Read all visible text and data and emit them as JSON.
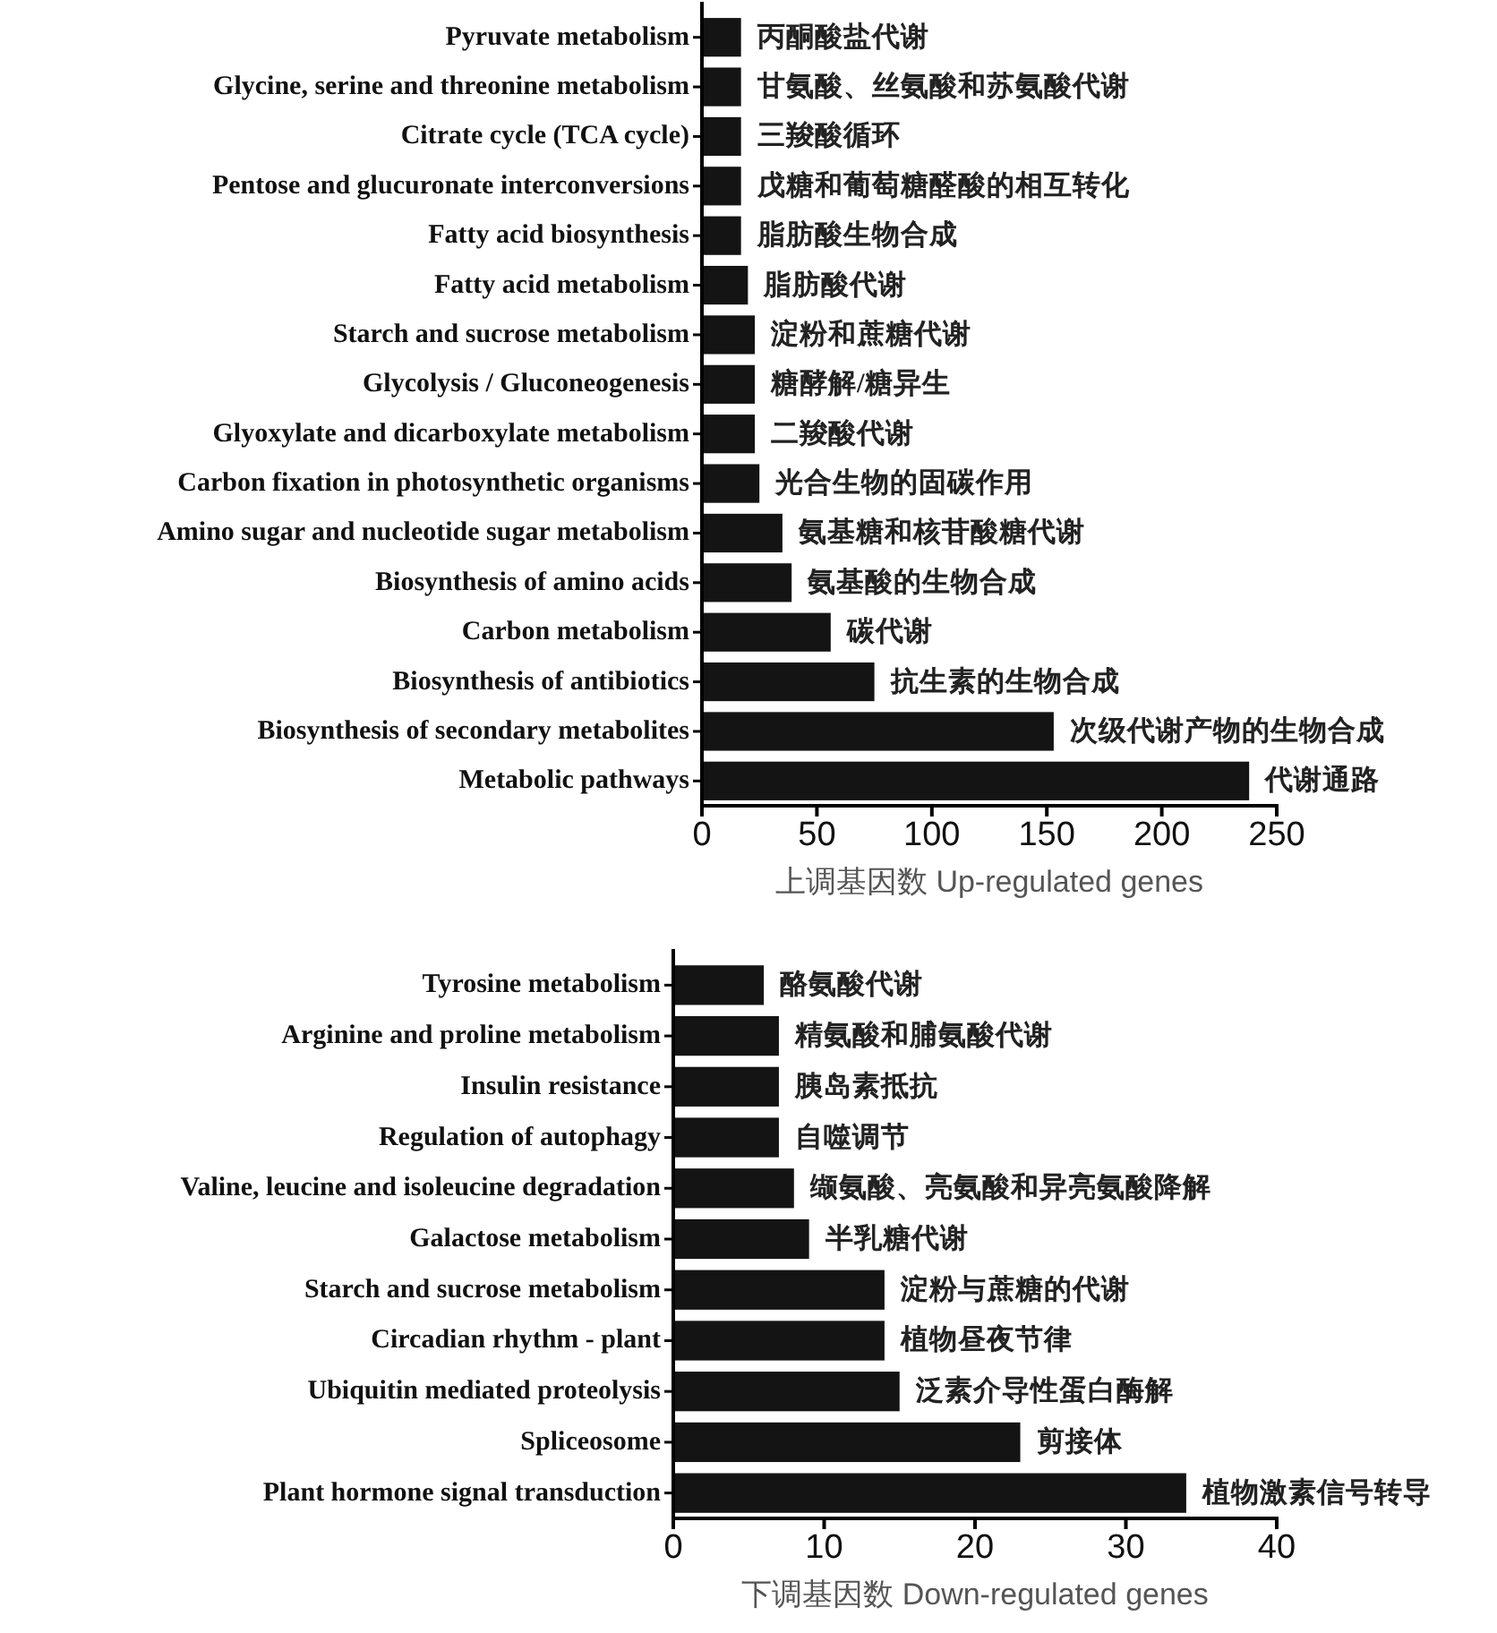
{
  "chart_data": [
    {
      "type": "bar",
      "orientation": "horizontal",
      "color": "#141414",
      "categories": [
        "Pyruvate metabolism",
        "Glycine, serine and threonine metabolism",
        "Citrate cycle (TCA cycle)",
        "Pentose and glucuronate interconversions",
        "Fatty acid biosynthesis",
        "Fatty acid metabolism",
        "Starch and sucrose metabolism",
        "Glycolysis / Gluconeogenesis",
        "Glyoxylate and dicarboxylate metabolism",
        "Carbon fixation in photosynthetic organisms",
        "Amino sugar and nucleotide sugar metabolism",
        "Biosynthesis of amino acids",
        "Carbon metabolism",
        "Biosynthesis of antibiotics",
        "Biosynthesis of secondary metabolites",
        "Metabolic pathways"
      ],
      "values": [
        17,
        17,
        17,
        17,
        17,
        20,
        23,
        23,
        23,
        25,
        35,
        39,
        56,
        75,
        153,
        238
      ],
      "xlim": [
        0,
        250
      ],
      "xticks": [
        0,
        50,
        100,
        150,
        200,
        250
      ],
      "xlabel": "上调基因数  Up-regulated genes",
      "annotations": [
        {
          "text": "丙酮酸盐代谢",
          "x": 17,
          "y": "Pyruvate metabolism"
        },
        {
          "text": "甘氨酸、丝氨酸和苏氨酸代谢",
          "x": 17,
          "y": "Glycine, serine and threonine metabolism"
        },
        {
          "text": "三羧酸循环",
          "x": 17,
          "y": "Citrate cycle (TCA cycle)"
        },
        {
          "text": "戊糖和葡萄糖醛酸的相互转化",
          "x": 17,
          "y": "Pentose and glucuronate interconversions"
        },
        {
          "text": "脂肪酸生物合成",
          "x": 17,
          "y": "Fatty acid biosynthesis"
        },
        {
          "text": "脂肪酸代谢",
          "x": 20,
          "y": "Fatty acid metabolism"
        },
        {
          "text": "淀粉和蔗糖代谢",
          "x": 23,
          "y": "Starch and sucrose metabolism"
        },
        {
          "text": "糖酵解/糖异生",
          "x": 23,
          "y": "Glycolysis / Gluconeogenesis"
        },
        {
          "text": "二羧酸代谢",
          "x": 23,
          "y": "Glyoxylate and dicarboxylate metabolism"
        },
        {
          "text": "光合生物的固碳作用",
          "x": 25,
          "y": "Carbon fixation in photosynthetic organisms"
        },
        {
          "text": "氨基糖和核苷酸糖代谢",
          "x": 35,
          "y": "Amino sugar and nucleotide sugar metabolism"
        },
        {
          "text": "氨基酸的生物合成",
          "x": 39,
          "y": "Biosynthesis of amino acids"
        },
        {
          "text": "碳代谢",
          "x": 56,
          "y": "Carbon metabolism"
        },
        {
          "text": "抗生素的生物合成",
          "x": 75,
          "y": "Biosynthesis of antibiotics"
        },
        {
          "text": "次级代谢产物的生物合成",
          "x": 153,
          "y": "Biosynthesis of secondary metabolites"
        },
        {
          "text": "代谢通路",
          "x": 238,
          "y": "Metabolic pathways"
        }
      ]
    },
    {
      "type": "bar",
      "orientation": "horizontal",
      "color": "#141414",
      "categories": [
        "Tyrosine metabolism",
        "Arginine and proline metabolism",
        "Insulin resistance",
        "Regulation of autophagy",
        "Valine, leucine and isoleucine degradation",
        "Galactose metabolism",
        "Starch and sucrose metabolism",
        "Circadian rhythm - plant",
        "Ubiquitin mediated proteolysis",
        "Spliceosome",
        "Plant hormone signal transduction"
      ],
      "values": [
        6,
        7,
        7,
        7,
        8,
        9,
        14,
        14,
        15,
        23,
        34
      ],
      "xlim": [
        0,
        40
      ],
      "xticks": [
        0,
        10,
        20,
        30,
        40
      ],
      "xlabel": "下调基因数  Down-regulated genes",
      "annotations": [
        {
          "text": "酪氨酸代谢",
          "x": 6,
          "y": "Tyrosine metabolism"
        },
        {
          "text": "精氨酸和脯氨酸代谢",
          "x": 7,
          "y": "Arginine and proline metabolism"
        },
        {
          "text": "胰岛素抵抗",
          "x": 7,
          "y": "Insulin resistance"
        },
        {
          "text": "自噬调节",
          "x": 7,
          "y": "Regulation of autophagy"
        },
        {
          "text": "缬氨酸、亮氨酸和异亮氨酸降解",
          "x": 8,
          "y": "Valine, leucine and isoleucine degradation"
        },
        {
          "text": "半乳糖代谢",
          "x": 9,
          "y": "Galactose metabolism"
        },
        {
          "text": "淀粉与蔗糖的代谢",
          "x": 14,
          "y": "Starch and sucrose metabolism"
        },
        {
          "text": "植物昼夜节律",
          "x": 14,
          "y": "Circadian rhythm - plant"
        },
        {
          "text": "泛素介导性蛋白酶解",
          "x": 15,
          "y": "Ubiquitin mediated proteolysis"
        },
        {
          "text": "剪接体",
          "x": 23,
          "y": "Spliceosome"
        },
        {
          "text": "植物激素信号转导",
          "x": 34,
          "y": "Plant hormone signal transduction"
        }
      ]
    }
  ]
}
